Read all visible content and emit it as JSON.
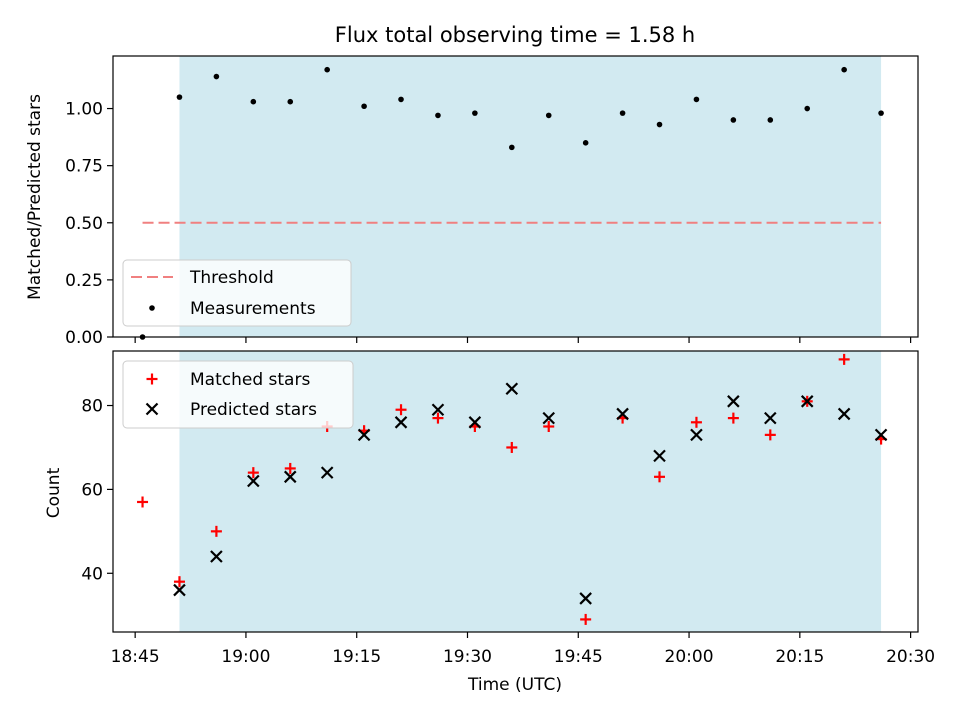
{
  "figure": {
    "title": "Flux total observing time = 1.58 h"
  },
  "chart_data": [
    {
      "type": "scatter",
      "panel": "top",
      "ylabel": "Matched/Predicted stars",
      "xlabel": "",
      "xlim": [
        "18:42",
        "20:31"
      ],
      "ylim": [
        0,
        1.23
      ],
      "yticks": [
        0.0,
        0.25,
        0.5,
        0.75,
        1.0
      ],
      "ytick_labels": [
        "0.00",
        "0.25",
        "0.50",
        "0.75",
        "1.00"
      ],
      "xticks": [
        "18:45",
        "19:00",
        "19:15",
        "19:30",
        "19:45",
        "20:00",
        "20:15",
        "20:30"
      ],
      "show_xtick_labels": false,
      "grid": false,
      "legend": "lower-left",
      "shaded_span": {
        "start": "18:51",
        "end": "20:26",
        "color": "#add8e6"
      },
      "threshold": {
        "name": "Threshold",
        "value": 0.5,
        "start": "18:46",
        "end": "20:26",
        "color": "#f08080",
        "style": "dashed"
      },
      "series": [
        {
          "name": "Measurements",
          "marker": "dot",
          "color": "#000000",
          "x": [
            "18:46",
            "18:51",
            "18:56",
            "19:01",
            "19:06",
            "19:11",
            "19:16",
            "19:21",
            "19:26",
            "19:31",
            "19:36",
            "19:41",
            "19:46",
            "19:51",
            "19:56",
            "20:01",
            "20:06",
            "20:11",
            "20:16",
            "20:21",
            "20:26"
          ],
          "y": [
            0.0,
            1.05,
            1.14,
            1.03,
            1.03,
            1.17,
            1.01,
            1.04,
            0.97,
            0.98,
            0.83,
            0.97,
            0.85,
            0.98,
            0.93,
            1.04,
            0.95,
            0.95,
            1.0,
            1.17,
            0.98
          ]
        }
      ]
    },
    {
      "type": "scatter",
      "panel": "bottom",
      "ylabel": "Count",
      "xlabel": "Time (UTC)",
      "xlim": [
        "18:42",
        "20:31"
      ],
      "ylim": [
        26,
        93
      ],
      "yticks": [
        40,
        60,
        80
      ],
      "ytick_labels": [
        "40",
        "60",
        "80"
      ],
      "xticks": [
        "18:45",
        "19:00",
        "19:15",
        "19:30",
        "19:45",
        "20:00",
        "20:15",
        "20:30"
      ],
      "show_xtick_labels": true,
      "grid": false,
      "legend": "top-left",
      "shaded_span": {
        "start": "18:51",
        "end": "20:26",
        "color": "#add8e6"
      },
      "series": [
        {
          "name": "Matched stars",
          "marker": "plus",
          "color": "#ff0000",
          "x": [
            "18:46",
            "18:51",
            "18:56",
            "19:01",
            "19:06",
            "19:11",
            "19:16",
            "19:21",
            "19:26",
            "19:31",
            "19:36",
            "19:41",
            "19:46",
            "19:51",
            "19:56",
            "20:01",
            "20:06",
            "20:11",
            "20:16",
            "20:21",
            "20:26"
          ],
          "y": [
            57,
            38,
            50,
            64,
            65,
            75,
            74,
            79,
            77,
            75,
            70,
            75,
            29,
            77,
            63,
            76,
            77,
            73,
            81,
            91,
            72
          ]
        },
        {
          "name": "Predicted stars",
          "marker": "x",
          "color": "#000000",
          "x": [
            "18:51",
            "18:56",
            "19:01",
            "19:06",
            "19:11",
            "19:16",
            "19:21",
            "19:26",
            "19:31",
            "19:36",
            "19:41",
            "19:46",
            "19:51",
            "19:56",
            "20:01",
            "20:06",
            "20:11",
            "20:16",
            "20:21",
            "20:26"
          ],
          "y": [
            36,
            44,
            62,
            63,
            64,
            73,
            76,
            79,
            76,
            84,
            77,
            34,
            78,
            68,
            73,
            81,
            77,
            81,
            78,
            73
          ]
        }
      ]
    }
  ]
}
